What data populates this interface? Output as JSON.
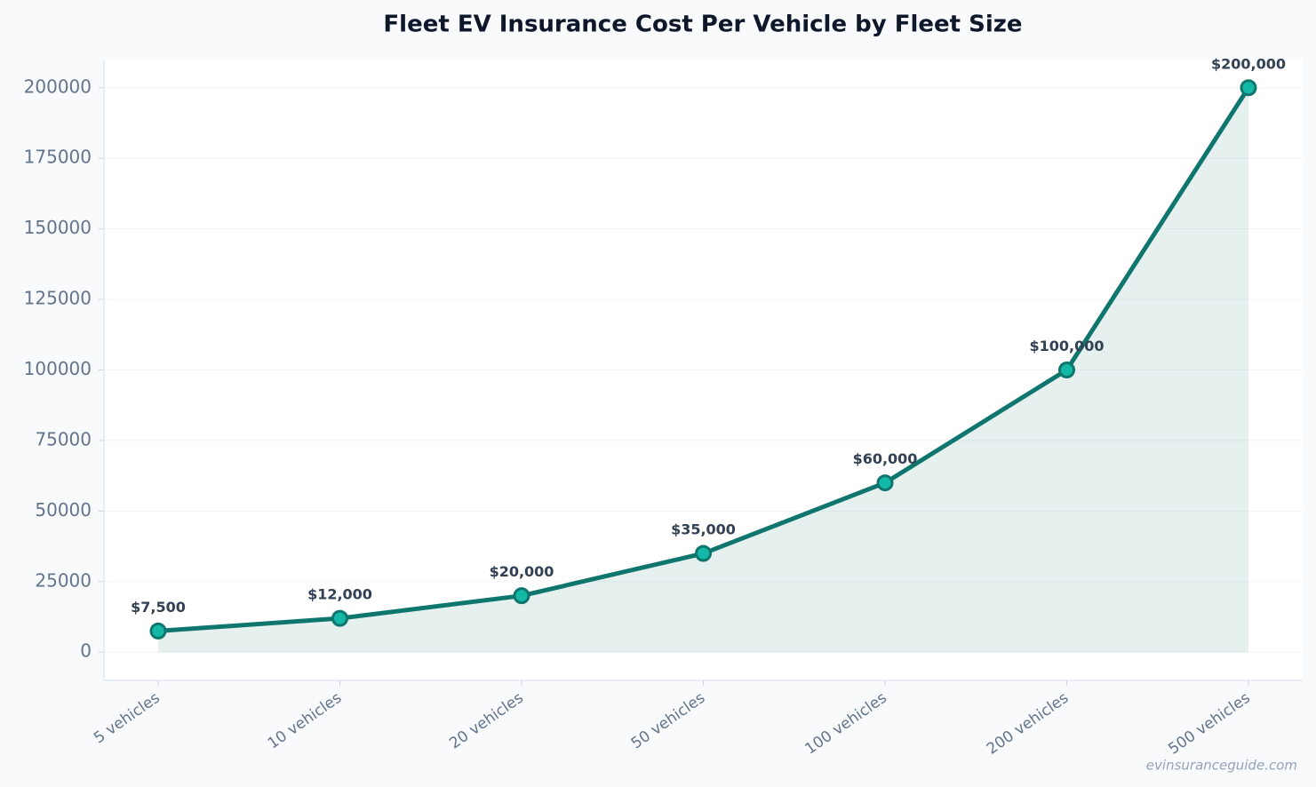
{
  "chart_data": {
    "type": "line",
    "title": "Fleet EV Insurance Cost Per Vehicle by Fleet Size",
    "categories": [
      "5 vehicles",
      "10 vehicles",
      "20 vehicles",
      "50 vehicles",
      "100 vehicles",
      "200 vehicles",
      "500 vehicles"
    ],
    "values": [
      7500,
      12000,
      20000,
      35000,
      60000,
      100000,
      200000
    ],
    "value_labels": [
      "$7,500",
      "$12,000",
      "$20,000",
      "$35,000",
      "$60,000",
      "$100,000",
      "$200,000"
    ],
    "color": "#0f766e",
    "marker_color": "#14b8a6",
    "area": true,
    "area_color": "#0f766e",
    "ylim": [
      -10000,
      210000
    ],
    "yticks": [
      0,
      25000,
      50000,
      75000,
      100000,
      125000,
      150000,
      175000,
      200000
    ],
    "grid": true,
    "watermark": "evinsuranceguide.com"
  }
}
